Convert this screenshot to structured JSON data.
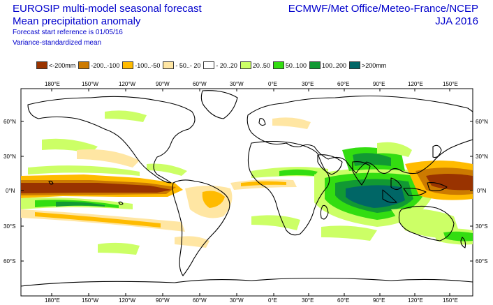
{
  "header": {
    "title_line1": "EUROSIP multi-model seasonal forecast",
    "title_line2": "Mean precipitation anomaly",
    "info_line1": "Forecast start reference is 01/05/16",
    "info_line2": "Variance-standardized mean",
    "source": "ECMWF/Met Office/Meteo-France/NCEP",
    "season": "JJA 2016"
  },
  "legend": [
    {
      "label": "<-200mm",
      "color": "#993300"
    },
    {
      "label": "-200..-100",
      "color": "#cc7a00"
    },
    {
      "label": "-100..-50",
      "color": "#ffbb00"
    },
    {
      "label": "- 50..- 20",
      "color": "#ffe6a3"
    },
    {
      "label": "- 20..20",
      "color": "#ffffff"
    },
    {
      "label": "20..50",
      "color": "#ccff66"
    },
    {
      "label": "50..100",
      "color": "#33dd11"
    },
    {
      "label": "100..200",
      "color": "#119933"
    },
    {
      "label": ">200mm",
      "color": "#006666"
    }
  ],
  "axes": {
    "lon_labels": [
      "180°E",
      "150°W",
      "120°W",
      "90°W",
      "60°W",
      "30°W",
      "0°E",
      "30°E",
      "60°E",
      "90°E",
      "120°E",
      "150°E"
    ],
    "lat_labels": [
      "60°N",
      "30°N",
      "0°N",
      "30°S",
      "60°S"
    ]
  }
}
